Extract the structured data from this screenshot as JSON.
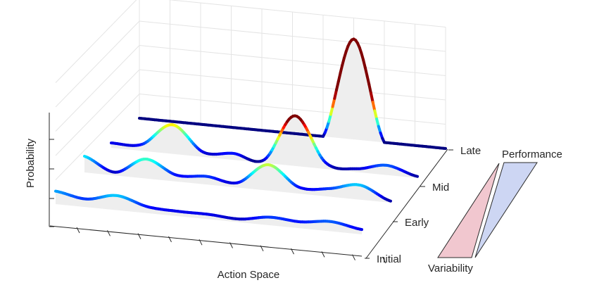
{
  "chart_data": {
    "type": "line",
    "projection": "3d-waterfall",
    "xlabel": "Action Space",
    "ylabel": "",
    "zlabel": "Probability",
    "depth_categories": [
      "Initial",
      "Early",
      "Mid",
      "Late"
    ],
    "colormap": "jet",
    "grid": true,
    "x": [
      0,
      0.1,
      0.2,
      0.3,
      0.4,
      0.5,
      0.6,
      0.7,
      0.8,
      0.9,
      1.0
    ],
    "series": [
      {
        "name": "Initial",
        "values": [
          0.08,
          0.05,
          0.09,
          0.04,
          0.03,
          0.03,
          0.02,
          0.05,
          0.04,
          0.06,
          0.03
        ]
      },
      {
        "name": "Early",
        "values": [
          0.1,
          0.02,
          0.12,
          0.04,
          0.05,
          0.03,
          0.16,
          0.04,
          0.05,
          0.09,
          0.01
        ]
      },
      {
        "name": "Mid",
        "values": [
          0.03,
          0.04,
          0.18,
          0.03,
          0.04,
          0.02,
          0.31,
          0.04,
          0.02,
          0.06,
          0.01
        ]
      },
      {
        "name": "Late",
        "values": [
          0.0,
          0.0,
          0.0,
          0.0,
          0.0,
          0.0,
          0.0,
          0.62,
          0.0,
          0.0,
          0.0
        ]
      }
    ],
    "legend": {
      "performance_label": "Performance",
      "variability_label": "Variability",
      "performance_color": "#cdd6f3",
      "variability_color": "#f1c7cf"
    },
    "grid_color": "#e4e4e4",
    "floor_color": "#eeeeee"
  }
}
